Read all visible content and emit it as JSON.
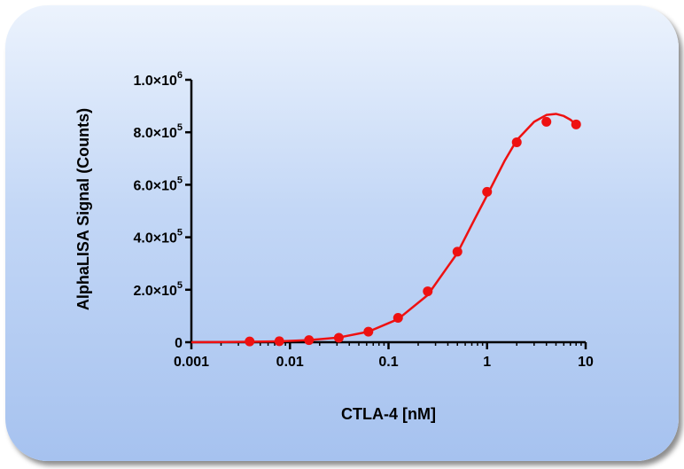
{
  "chart_data": {
    "type": "scatter",
    "title": "",
    "xlabel": "CTLA-4 [nM]",
    "ylabel": "AlphaLISA Signal (Counts)",
    "x_scale": "log",
    "xlim": [
      0.001,
      10
    ],
    "ylim": [
      0,
      1000000
    ],
    "grid": false,
    "x_ticks": [
      {
        "value": 0.001,
        "label": "0.001"
      },
      {
        "value": 0.01,
        "label": "0.01"
      },
      {
        "value": 0.1,
        "label": "0.1"
      },
      {
        "value": 1,
        "label": "1"
      },
      {
        "value": 10,
        "label": "10"
      }
    ],
    "y_ticks": [
      {
        "value": 0,
        "mant": "0",
        "exp": ""
      },
      {
        "value": 200000,
        "mant": "2.0×10",
        "exp": "5"
      },
      {
        "value": 400000,
        "mant": "4.0×10",
        "exp": "5"
      },
      {
        "value": 600000,
        "mant": "6.0×10",
        "exp": "5"
      },
      {
        "value": 800000,
        "mant": "8.0×10",
        "exp": "5"
      },
      {
        "value": 1000000,
        "mant": "1.0×10",
        "exp": "6"
      }
    ],
    "series": [
      {
        "color": "#ee1111",
        "points": [
          {
            "x": 0.0039,
            "y": 3000
          },
          {
            "x": 0.0078,
            "y": 4000
          },
          {
            "x": 0.0156,
            "y": 8000
          },
          {
            "x": 0.0313,
            "y": 17000
          },
          {
            "x": 0.0625,
            "y": 40000
          },
          {
            "x": 0.125,
            "y": 93000
          },
          {
            "x": 0.25,
            "y": 194000
          },
          {
            "x": 0.5,
            "y": 345000
          },
          {
            "x": 1,
            "y": 573000
          },
          {
            "x": 2,
            "y": 762000
          },
          {
            "x": 4,
            "y": 840000
          },
          {
            "x": 8,
            "y": 830000
          }
        ],
        "fit_curve": [
          {
            "x": 0.001,
            "y": 0
          },
          {
            "x": 0.0039,
            "y": 1500
          },
          {
            "x": 0.0078,
            "y": 3500
          },
          {
            "x": 0.0156,
            "y": 8000
          },
          {
            "x": 0.0313,
            "y": 18000
          },
          {
            "x": 0.0625,
            "y": 40000
          },
          {
            "x": 0.125,
            "y": 88000
          },
          {
            "x": 0.25,
            "y": 180000
          },
          {
            "x": 0.5,
            "y": 340000
          },
          {
            "x": 0.75,
            "y": 470000
          },
          {
            "x": 1,
            "y": 560000
          },
          {
            "x": 1.5,
            "y": 690000
          },
          {
            "x": 2,
            "y": 770000
          },
          {
            "x": 3,
            "y": 840000
          },
          {
            "x": 4,
            "y": 866000
          },
          {
            "x": 5,
            "y": 870000
          },
          {
            "x": 6,
            "y": 862000
          },
          {
            "x": 7,
            "y": 848000
          },
          {
            "x": 8,
            "y": 830000
          }
        ]
      }
    ]
  }
}
